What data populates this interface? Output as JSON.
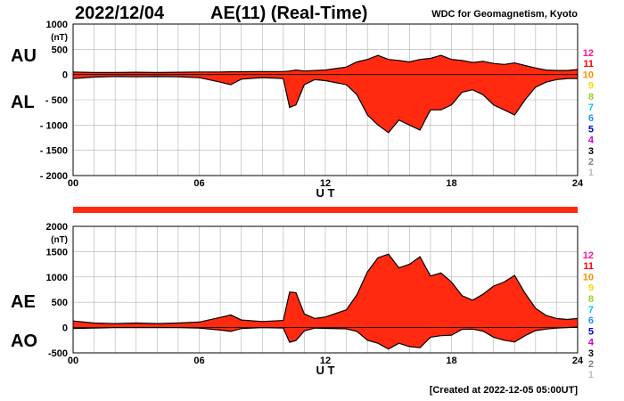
{
  "header": {
    "date": "2022/12/04",
    "title": "AE(11) (Real-Time)",
    "organization": "WDC for Geomagnetism, Kyoto"
  },
  "footer": {
    "created": "[Created at 2022-12-05 05:00UT]"
  },
  "station_legend": {
    "labels": [
      "12",
      "11",
      "10",
      "9",
      "8",
      "7",
      "6",
      "5",
      "4",
      "3",
      "2",
      "1"
    ],
    "colors": [
      "#ff1493",
      "#ff0000",
      "#ff8c00",
      "#ffd700",
      "#9acd32",
      "#00ced1",
      "#1e90ff",
      "#0000cd",
      "#cc00cc",
      "#000000",
      "#808080",
      "#c0c0c0"
    ]
  },
  "colors": {
    "fill": "#ff2a10",
    "outline": "#000000",
    "grid": "#b0b0b0"
  },
  "chart_data": [
    {
      "type": "area",
      "panel": "AU/AL",
      "series_labels": [
        "AU",
        "AL"
      ],
      "unit_label": "(nT)",
      "xlabel": "U T",
      "x_ticks": [
        "00",
        "06",
        "12",
        "18",
        "24"
      ],
      "y_ticks": [
        "1000",
        "500",
        "0",
        "- 500",
        "- 1000",
        "- 1500",
        "- 2000"
      ],
      "xlim": [
        0,
        24
      ],
      "ylim": [
        -2000,
        1000
      ],
      "x": [
        0,
        1,
        2,
        3,
        4,
        5,
        6,
        7,
        7.5,
        8,
        9,
        10,
        10.3,
        10.6,
        11,
        11.5,
        12,
        13,
        13.5,
        14,
        14.5,
        15,
        15.5,
        16,
        16.5,
        17,
        17.5,
        18,
        18.5,
        19,
        19.5,
        20,
        20.5,
        21,
        21.5,
        22,
        22.5,
        23,
        23.5,
        24
      ],
      "series": [
        {
          "name": "AU",
          "values": [
            50,
            40,
            40,
            45,
            40,
            45,
            50,
            50,
            55,
            55,
            60,
            60,
            70,
            90,
            70,
            80,
            90,
            150,
            250,
            300,
            380,
            300,
            280,
            250,
            300,
            320,
            380,
            300,
            280,
            240,
            260,
            220,
            200,
            230,
            180,
            130,
            90,
            80,
            80,
            100
          ]
        },
        {
          "name": "AL",
          "values": [
            -80,
            -50,
            -40,
            -45,
            -40,
            -45,
            -60,
            -150,
            -200,
            -90,
            -60,
            -80,
            -650,
            -600,
            -200,
            -100,
            -120,
            -200,
            -400,
            -800,
            -1000,
            -1150,
            -900,
            -1000,
            -1100,
            -700,
            -700,
            -600,
            -350,
            -300,
            -400,
            -600,
            -700,
            -800,
            -500,
            -250,
            -150,
            -100,
            -80,
            -80
          ]
        }
      ]
    },
    {
      "type": "area",
      "panel": "AE/AO",
      "series_labels": [
        "AE",
        "AO"
      ],
      "unit_label": "(nT)",
      "xlabel": "U T",
      "x_ticks": [
        "00",
        "06",
        "12",
        "18",
        "24"
      ],
      "y_ticks": [
        "2000",
        "1500",
        "1000",
        "500",
        "0",
        "-500"
      ],
      "xlim": [
        0,
        24
      ],
      "ylim": [
        -500,
        2000
      ],
      "x": [
        0,
        1,
        2,
        3,
        4,
        5,
        6,
        7,
        7.5,
        8,
        9,
        10,
        10.3,
        10.6,
        11,
        11.5,
        12,
        13,
        13.5,
        14,
        14.5,
        15,
        15.5,
        16,
        16.5,
        17,
        17.5,
        18,
        18.5,
        19,
        19.5,
        20,
        20.5,
        21,
        21.5,
        22,
        22.5,
        23,
        23.5,
        24
      ],
      "series": [
        {
          "name": "AE",
          "values": [
            130,
            90,
            80,
            90,
            80,
            90,
            110,
            200,
            250,
            150,
            120,
            140,
            700,
            690,
            270,
            180,
            210,
            350,
            650,
            1100,
            1380,
            1450,
            1180,
            1250,
            1400,
            1020,
            1080,
            900,
            630,
            540,
            660,
            820,
            900,
            1030,
            680,
            380,
            240,
            180,
            160,
            180
          ]
        },
        {
          "name": "AO",
          "values": [
            -20,
            -10,
            0,
            0,
            0,
            0,
            -10,
            -50,
            -75,
            -20,
            0,
            -10,
            -290,
            -255,
            -65,
            -10,
            -15,
            -25,
            -75,
            -250,
            -310,
            -425,
            -310,
            -375,
            -400,
            -190,
            -160,
            -150,
            -35,
            -30,
            -70,
            -190,
            -250,
            -285,
            -160,
            -60,
            -30,
            -10,
            0,
            10
          ]
        }
      ]
    }
  ]
}
